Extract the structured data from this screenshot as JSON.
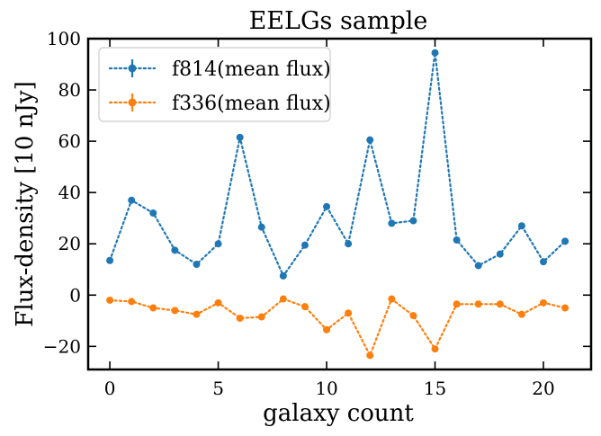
{
  "chart_data": {
    "type": "line",
    "title": "EELGs sample",
    "xlabel": "galaxy count",
    "ylabel": "Flux-density [10 nJy]",
    "xlim": [
      -1,
      22.2
    ],
    "ylim": [
      -29,
      100
    ],
    "xticks": [
      0,
      5,
      10,
      15,
      20
    ],
    "xtick_labels": [
      "0",
      "5",
      "10",
      "15",
      "20"
    ],
    "yticks": [
      -20,
      0,
      20,
      40,
      60,
      80,
      100
    ],
    "ytick_labels": [
      "−20",
      "0",
      "20",
      "40",
      "60",
      "80",
      "100"
    ],
    "grid": false,
    "legend": "top-left",
    "x": [
      0,
      1,
      2,
      3,
      4,
      5,
      6,
      7,
      8,
      9,
      10,
      11,
      12,
      13,
      14,
      15,
      16,
      17,
      18,
      19,
      20,
      21
    ],
    "series": [
      {
        "name": "f814(mean flux)",
        "color": "#1f77b4",
        "linestyle": "dotted",
        "marker": "circle",
        "values": [
          13.5,
          37,
          32,
          17.5,
          12,
          20,
          61.5,
          26.5,
          7.5,
          19.5,
          34.5,
          20,
          60.5,
          28,
          29,
          94.5,
          21.5,
          11.5,
          16,
          27,
          13,
          21
        ]
      },
      {
        "name": "f336(mean flux)",
        "color": "#ff7f0e",
        "linestyle": "dotted",
        "marker": "circle",
        "values": [
          -2,
          -2.5,
          -5,
          -6,
          -7.5,
          -3,
          -9,
          -8.5,
          -1.5,
          -4.5,
          -13.5,
          -7,
          -23.5,
          -1.5,
          -8,
          -21,
          -3.5,
          -3.5,
          -3.5,
          -7.5,
          -3,
          -5
        ]
      }
    ]
  }
}
